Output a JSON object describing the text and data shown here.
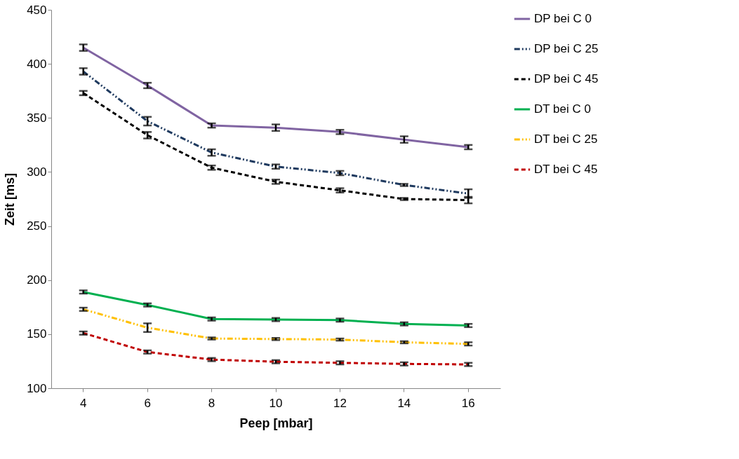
{
  "chart_data": {
    "type": "line",
    "xlabel": "Peep [mbar]",
    "ylabel": "Zeit [ms]",
    "categories": [
      "4",
      "6",
      "8",
      "10",
      "12",
      "14",
      "16"
    ],
    "ylim": [
      100,
      450
    ],
    "yticks": [
      100,
      150,
      200,
      250,
      300,
      350,
      400,
      450
    ],
    "grid": false,
    "legend": "right",
    "marker": "none",
    "series": [
      {
        "name": "DP bei C 0",
        "color": "#8064a2",
        "line_style": "solid",
        "values": [
          415,
          380,
          343,
          341,
          337,
          330,
          323
        ],
        "errors": [
          3,
          2.5,
          2,
          3,
          2,
          3,
          2
        ]
      },
      {
        "name": "DP bei C 25",
        "color": "#1f3a5f",
        "line_style": "dashdotdot",
        "values": [
          393,
          347,
          318,
          305,
          299,
          288,
          280
        ],
        "errors": [
          3,
          4,
          3,
          2,
          2,
          1,
          4
        ]
      },
      {
        "name": "DP bei C 45",
        "color": "#000000",
        "line_style": "dashed",
        "values": [
          373,
          334,
          304,
          291,
          283,
          275,
          274
        ],
        "errors": [
          2,
          3,
          2,
          2,
          2,
          1,
          3
        ]
      },
      {
        "name": "DT bei C 0",
        "color": "#00b050",
        "line_style": "solid",
        "values": [
          189,
          177,
          164,
          163.5,
          163,
          159.5,
          158
        ],
        "errors": [
          1.5,
          1.5,
          1.5,
          1.5,
          1.5,
          1.5,
          1.5
        ]
      },
      {
        "name": "DT bei C 25",
        "color": "#ffc000",
        "line_style": "dashdotdot",
        "values": [
          173,
          156,
          146,
          145.5,
          145,
          142.5,
          141
        ],
        "errors": [
          1.5,
          4,
          1,
          1,
          1,
          1,
          1.5
        ]
      },
      {
        "name": "DT bei C 45",
        "color": "#c00000",
        "line_style": "dashed",
        "values": [
          151,
          133.5,
          126.5,
          124.5,
          123.5,
          122.5,
          122
        ],
        "errors": [
          1.5,
          1.5,
          1.5,
          1.5,
          1.5,
          1.5,
          1.5
        ]
      }
    ]
  }
}
